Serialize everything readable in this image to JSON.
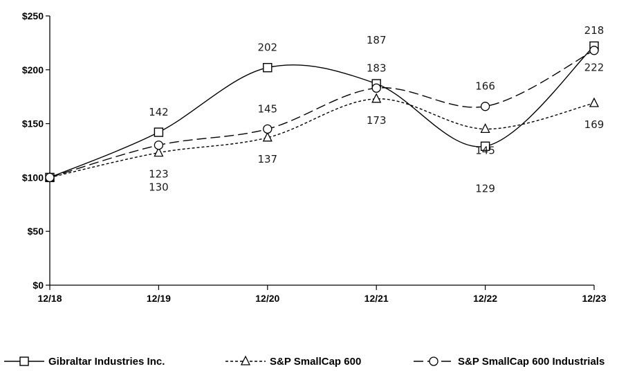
{
  "chart_data": {
    "type": "line",
    "categories": [
      "12/18",
      "12/19",
      "12/20",
      "12/21",
      "12/22",
      "12/23"
    ],
    "ylim": [
      0,
      250
    ],
    "yticks": [
      0,
      50,
      100,
      150,
      200,
      250
    ],
    "ytick_labels": [
      "$0",
      "$50",
      "$100",
      "$150",
      "$200",
      "$250"
    ],
    "grid": false,
    "legend_position": "bottom",
    "series": [
      {
        "name": "Gibraltar Industries Inc.",
        "values": [
          100,
          142,
          202,
          187,
          129,
          222
        ],
        "marker": "square",
        "dash": "solid",
        "color": "#000000"
      },
      {
        "name": "S&P SmallCap 600",
        "values": [
          100,
          123,
          137,
          173,
          145,
          169
        ],
        "marker": "triangle",
        "dash": "dotted",
        "color": "#000000"
      },
      {
        "name": "S&P SmallCap 600 Industrials",
        "values": [
          100,
          130,
          145,
          183,
          166,
          218
        ],
        "marker": "circle",
        "dash": "dashed",
        "color": "#000000"
      }
    ],
    "data_labels": [
      {
        "text": "142",
        "x": "12/19",
        "y": 142,
        "pos": "above"
      },
      {
        "text": "123",
        "x": "12/19",
        "y": 123,
        "pos": "below"
      },
      {
        "text": "130",
        "x": "12/19",
        "y": 130,
        "pos": "below2"
      },
      {
        "text": "202",
        "x": "12/20",
        "y": 202,
        "pos": "above"
      },
      {
        "text": "145",
        "x": "12/20",
        "y": 145,
        "pos": "above"
      },
      {
        "text": "137",
        "x": "12/20",
        "y": 137,
        "pos": "below"
      },
      {
        "text": "187",
        "x": "12/21",
        "y": 187,
        "pos": "above2"
      },
      {
        "text": "183",
        "x": "12/21",
        "y": 183,
        "pos": "above"
      },
      {
        "text": "173",
        "x": "12/21",
        "y": 173,
        "pos": "below"
      },
      {
        "text": "166",
        "x": "12/22",
        "y": 166,
        "pos": "above"
      },
      {
        "text": "145",
        "x": "12/22",
        "y": 145,
        "pos": "below"
      },
      {
        "text": "129",
        "x": "12/22",
        "y": 129,
        "pos": "below2"
      },
      {
        "text": "218",
        "x": "12/23",
        "y": 218,
        "pos": "above"
      },
      {
        "text": "222",
        "x": "12/23",
        "y": 222,
        "pos": "below"
      },
      {
        "text": "169",
        "x": "12/23",
        "y": 169,
        "pos": "below"
      }
    ]
  }
}
